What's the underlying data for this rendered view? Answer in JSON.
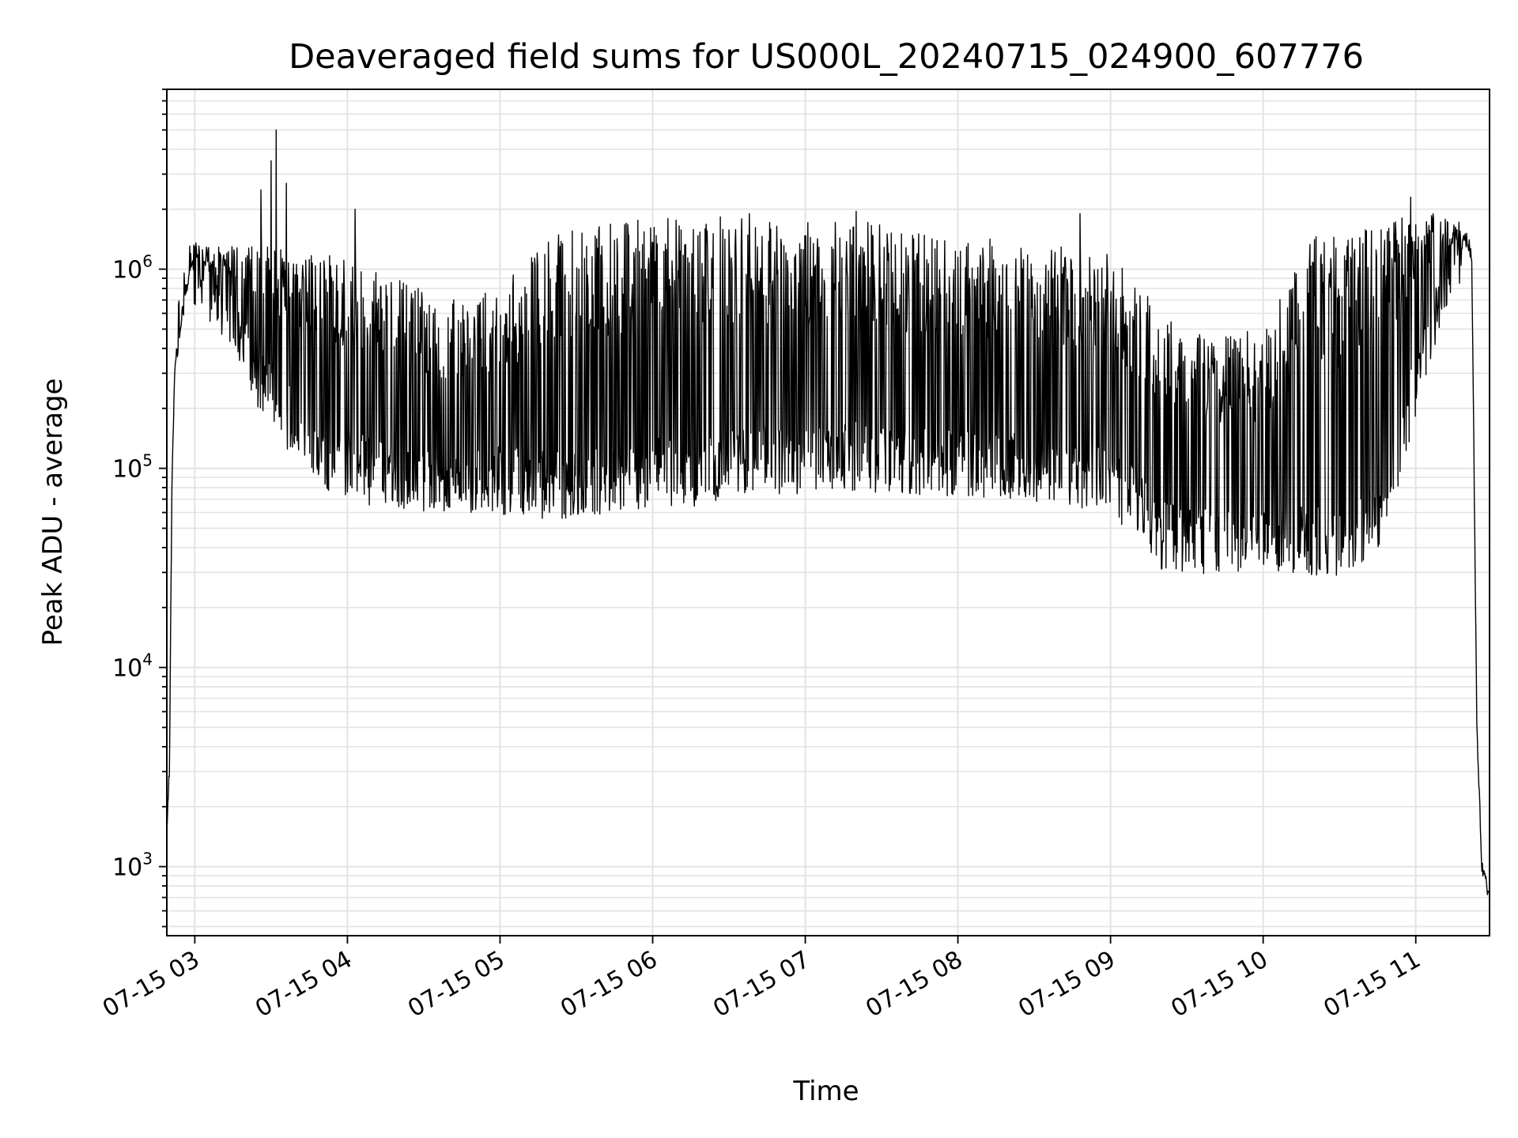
{
  "chart_data": {
    "type": "line",
    "title": "Deaveraged field sums for US000L_20240715_024900_607776",
    "xlabel": "Time",
    "ylabel": "Peak ADU - average",
    "yscale": "log",
    "ylim": [
      450,
      8000000
    ],
    "xlim": [
      "2024-07-15T02:49:00",
      "2024-07-15T11:29:00"
    ],
    "grid": "on (major and minor, light gray)",
    "line_color": "#000000",
    "x_ticks": [
      {
        "value": "2024-07-15T03:00:00",
        "label": "07-15 03"
      },
      {
        "value": "2024-07-15T04:00:00",
        "label": "07-15 04"
      },
      {
        "value": "2024-07-15T05:00:00",
        "label": "07-15 05"
      },
      {
        "value": "2024-07-15T06:00:00",
        "label": "07-15 06"
      },
      {
        "value": "2024-07-15T07:00:00",
        "label": "07-15 07"
      },
      {
        "value": "2024-07-15T08:00:00",
        "label": "07-15 08"
      },
      {
        "value": "2024-07-15T09:00:00",
        "label": "07-15 09"
      },
      {
        "value": "2024-07-15T10:00:00",
        "label": "07-15 10"
      },
      {
        "value": "2024-07-15T11:00:00",
        "label": "07-15 11"
      }
    ],
    "y_ticks": [
      {
        "value": 1000,
        "base": "10",
        "exp": "3"
      },
      {
        "value": 10000,
        "base": "10",
        "exp": "4"
      },
      {
        "value": 100000,
        "base": "10",
        "exp": "5"
      },
      {
        "value": 1000000,
        "base": "10",
        "exp": "6"
      }
    ],
    "series": [
      {
        "baseline": {
          "x": [
            "2024-07-15T02:49:00",
            "2024-07-15T02:50:00",
            "2024-07-15T02:51:00",
            "2024-07-15T02:52:00",
            "2024-07-15T02:55:00",
            "2024-07-15T02:58:00",
            "2024-07-15T03:05:00",
            "2024-07-15T03:15:00",
            "2024-07-15T03:25:00",
            "2024-07-15T03:35:00",
            "2024-07-15T03:50:00",
            "2024-07-15T04:10:00",
            "2024-07-15T04:30:00",
            "2024-07-15T04:45:00",
            "2024-07-15T05:00:00",
            "2024-07-15T05:20:00",
            "2024-07-15T05:40:00",
            "2024-07-15T06:00:00",
            "2024-07-15T06:20:00",
            "2024-07-15T06:40:00",
            "2024-07-15T07:00:00",
            "2024-07-15T07:20:00",
            "2024-07-15T07:40:00",
            "2024-07-15T08:00:00",
            "2024-07-15T08:20:00",
            "2024-07-15T08:40:00",
            "2024-07-15T09:00:00",
            "2024-07-15T09:10:00",
            "2024-07-15T09:20:00",
            "2024-07-15T09:40:00",
            "2024-07-15T10:00:00",
            "2024-07-15T10:20:00",
            "2024-07-15T10:35:00",
            "2024-07-15T10:45:00",
            "2024-07-15T10:55:00",
            "2024-07-15T11:05:00",
            "2024-07-15T11:15:00",
            "2024-07-15T11:19:00",
            "2024-07-15T11:22:00",
            "2024-07-15T11:24:00",
            "2024-07-15T11:26:00",
            "2024-07-15T11:29:00"
          ],
          "y": [
            1500,
            3000,
            80000,
            300000,
            800000,
            1100000,
            800000,
            600000,
            300000,
            200000,
            120000,
            100000,
            90000,
            90000,
            90000,
            85000,
            90000,
            100000,
            100000,
            120000,
            110000,
            120000,
            110000,
            110000,
            110000,
            100000,
            90000,
            70000,
            48000,
            45000,
            45000,
            45000,
            45000,
            60000,
            150000,
            500000,
            1000000,
            1500000,
            1200000,
            5000,
            1000,
            700
          ]
        },
        "upper": {
          "x": [
            "2024-07-15T02:52:00",
            "2024-07-15T03:00:00",
            "2024-07-15T03:20:00",
            "2024-07-15T03:40:00",
            "2024-07-15T04:00:00",
            "2024-07-15T04:20:00",
            "2024-07-15T04:40:00",
            "2024-07-15T05:00:00",
            "2024-07-15T05:20:00",
            "2024-07-15T05:40:00",
            "2024-07-15T06:00:00",
            "2024-07-15T06:30:00",
            "2024-07-15T07:00:00",
            "2024-07-15T07:30:00",
            "2024-07-15T08:00:00",
            "2024-07-15T08:30:00",
            "2024-07-15T09:00:00",
            "2024-07-15T09:10:00",
            "2024-07-15T09:30:00",
            "2024-07-15T10:00:00",
            "2024-07-15T10:20:00",
            "2024-07-15T10:40:00",
            "2024-07-15T11:00:00",
            "2024-07-15T11:10:00",
            "2024-07-15T11:19:00"
          ],
          "y": [
            300000,
            1300000,
            1300000,
            1300000,
            1200000,
            900000,
            700000,
            800000,
            1500000,
            1700000,
            1800000,
            1850000,
            1800000,
            1700000,
            1500000,
            1350000,
            1200000,
            900000,
            500000,
            500000,
            1500000,
            1700000,
            2000000,
            1900000,
            1500000
          ]
        },
        "spikes": [
          {
            "x": "2024-07-15T03:26:00",
            "y": 2500000
          },
          {
            "x": "2024-07-15T03:30:00",
            "y": 3500000
          },
          {
            "x": "2024-07-15T03:32:00",
            "y": 5000000
          },
          {
            "x": "2024-07-15T03:36:00",
            "y": 2700000
          },
          {
            "x": "2024-07-15T04:03:00",
            "y": 2000000
          },
          {
            "x": "2024-07-15T06:38:00",
            "y": 1900000
          },
          {
            "x": "2024-07-15T07:20:00",
            "y": 1950000
          },
          {
            "x": "2024-07-15T08:48:00",
            "y": 1900000
          },
          {
            "x": "2024-07-15T10:58:00",
            "y": 2300000
          }
        ]
      }
    ]
  }
}
